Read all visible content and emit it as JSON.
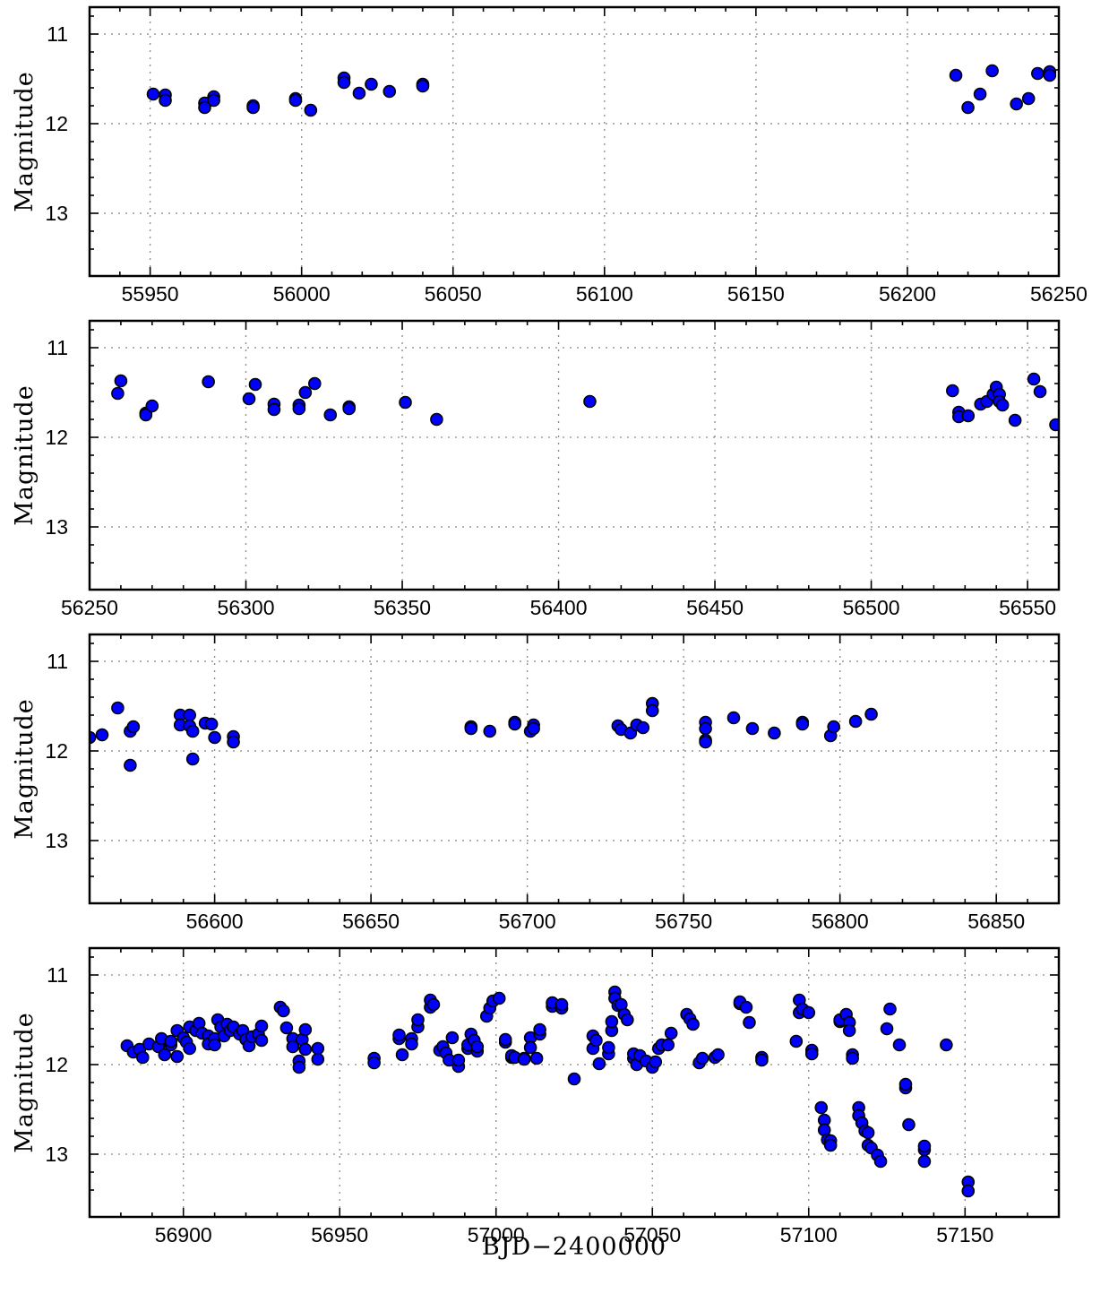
{
  "chart_data": [
    {
      "type": "scatter",
      "xlim": [
        55930,
        56250
      ],
      "ylim": [
        13.7,
        10.7
      ],
      "xticks": [
        55950,
        56000,
        56050,
        56100,
        56150,
        56200,
        56250
      ],
      "yticks": [
        11,
        12,
        13
      ],
      "ylabel": "Magnitude",
      "grid": true,
      "marker_color": "#0000ff",
      "points": [
        [
          55951,
          11.67
        ],
        [
          55955,
          11.68
        ],
        [
          55955,
          11.74
        ],
        [
          55968,
          11.77
        ],
        [
          55968,
          11.82
        ],
        [
          55971,
          11.7
        ],
        [
          55971,
          11.74
        ],
        [
          55984,
          11.8
        ],
        [
          55984,
          11.82
        ],
        [
          55998,
          11.72
        ],
        [
          55998,
          11.74
        ],
        [
          56003,
          11.85
        ],
        [
          56014,
          11.49
        ],
        [
          56014,
          11.54
        ],
        [
          56019,
          11.66
        ],
        [
          56023,
          11.56
        ],
        [
          56029,
          11.64
        ],
        [
          56040,
          11.56
        ],
        [
          56040,
          11.58
        ],
        [
          56216,
          11.46
        ],
        [
          56220,
          11.82
        ],
        [
          56224,
          11.67
        ],
        [
          56228,
          11.41
        ],
        [
          56236,
          11.78
        ],
        [
          56240,
          11.72
        ],
        [
          56243,
          11.44
        ],
        [
          56247,
          11.42
        ],
        [
          56247,
          11.46
        ]
      ]
    },
    {
      "type": "scatter",
      "xlim": [
        56250,
        56560
      ],
      "ylim": [
        13.7,
        10.7
      ],
      "xticks": [
        56250,
        56300,
        56350,
        56400,
        56450,
        56500,
        56550
      ],
      "yticks": [
        11,
        12,
        13
      ],
      "ylabel": "Magnitude",
      "grid": true,
      "marker_color": "#0000ff",
      "points": [
        [
          56259,
          11.51
        ],
        [
          56260,
          11.37
        ],
        [
          56268,
          11.73
        ],
        [
          56268,
          11.75
        ],
        [
          56270,
          11.65
        ],
        [
          56288,
          11.38
        ],
        [
          56301,
          11.57
        ],
        [
          56303,
          11.41
        ],
        [
          56309,
          11.63
        ],
        [
          56309,
          11.69
        ],
        [
          56317,
          11.64
        ],
        [
          56317,
          11.68
        ],
        [
          56319,
          11.5
        ],
        [
          56322,
          11.4
        ],
        [
          56327,
          11.75
        ],
        [
          56333,
          11.66
        ],
        [
          56333,
          11.68
        ],
        [
          56351,
          11.61
        ],
        [
          56361,
          11.8
        ],
        [
          56410,
          11.6
        ],
        [
          56526,
          11.48
        ],
        [
          56528,
          11.72
        ],
        [
          56528,
          11.77
        ],
        [
          56531,
          11.76
        ],
        [
          56535,
          11.63
        ],
        [
          56537,
          11.6
        ],
        [
          56539,
          11.52
        ],
        [
          56540,
          11.44
        ],
        [
          56541,
          11.52
        ],
        [
          56541,
          11.6
        ],
        [
          56542,
          11.64
        ],
        [
          56546,
          11.81
        ],
        [
          56552,
          11.35
        ],
        [
          56554,
          11.49
        ],
        [
          56559,
          11.86
        ]
      ]
    },
    {
      "type": "scatter",
      "xlim": [
        56560,
        56870
      ],
      "ylim": [
        13.7,
        10.7
      ],
      "xticks": [
        56600,
        56650,
        56700,
        56750,
        56800,
        56850
      ],
      "yticks": [
        11,
        12,
        13
      ],
      "ylabel": "Magnitude",
      "grid": true,
      "marker_color": "#0000ff",
      "points": [
        [
          56560,
          11.85
        ],
        [
          56564,
          11.82
        ],
        [
          56569,
          11.52
        ],
        [
          56573,
          11.78
        ],
        [
          56573,
          12.16
        ],
        [
          56574,
          11.73
        ],
        [
          56589,
          11.6
        ],
        [
          56589,
          11.71
        ],
        [
          56592,
          11.6
        ],
        [
          56592,
          11.72
        ],
        [
          56593,
          11.78
        ],
        [
          56593,
          12.09
        ],
        [
          56597,
          11.69
        ],
        [
          56599,
          11.7
        ],
        [
          56600,
          11.85
        ],
        [
          56606,
          11.84
        ],
        [
          56606,
          11.9
        ],
        [
          56682,
          11.73
        ],
        [
          56682,
          11.75
        ],
        [
          56688,
          11.78
        ],
        [
          56696,
          11.68
        ],
        [
          56696,
          11.7
        ],
        [
          56701,
          11.78
        ],
        [
          56702,
          11.71
        ],
        [
          56702,
          11.75
        ],
        [
          56729,
          11.72
        ],
        [
          56730,
          11.76
        ],
        [
          56733,
          11.8
        ],
        [
          56735,
          11.71
        ],
        [
          56737,
          11.74
        ],
        [
          56740,
          11.47
        ],
        [
          56740,
          11.55
        ],
        [
          56757,
          11.68
        ],
        [
          56757,
          11.75
        ],
        [
          56757,
          11.88
        ],
        [
          56757,
          11.9
        ],
        [
          56766,
          11.63
        ],
        [
          56772,
          11.75
        ],
        [
          56779,
          11.8
        ],
        [
          56788,
          11.68
        ],
        [
          56788,
          11.7
        ],
        [
          56797,
          11.83
        ],
        [
          56798,
          11.73
        ],
        [
          56805,
          11.67
        ],
        [
          56810,
          11.59
        ]
      ]
    },
    {
      "type": "scatter",
      "xlim": [
        56870,
        57180
      ],
      "ylim": [
        13.7,
        10.7
      ],
      "xticks": [
        56900,
        56950,
        57000,
        57050,
        57100,
        57150
      ],
      "yticks": [
        11,
        12,
        13
      ],
      "ylabel": "Magnitude",
      "grid": true,
      "marker_color": "#0000ff",
      "points": [
        [
          56882,
          11.79
        ],
        [
          56884,
          11.86
        ],
        [
          56886,
          11.83
        ],
        [
          56887,
          11.92
        ],
        [
          56889,
          11.77
        ],
        [
          56892,
          11.8
        ],
        [
          56893,
          11.71
        ],
        [
          56894,
          11.89
        ],
        [
          56896,
          11.78
        ],
        [
          56896,
          11.74
        ],
        [
          56898,
          11.91
        ],
        [
          56898,
          11.62
        ],
        [
          56900,
          11.7
        ],
        [
          56901,
          11.75
        ],
        [
          56902,
          11.58
        ],
        [
          56902,
          11.82
        ],
        [
          56904,
          11.62
        ],
        [
          56905,
          11.54
        ],
        [
          56906,
          11.65
        ],
        [
          56908,
          11.68
        ],
        [
          56908,
          11.77
        ],
        [
          56910,
          11.71
        ],
        [
          56910,
          11.78
        ],
        [
          56911,
          11.5
        ],
        [
          56912,
          11.58
        ],
        [
          56913,
          11.68
        ],
        [
          56914,
          11.55
        ],
        [
          56915,
          11.62
        ],
        [
          56916,
          11.58
        ],
        [
          56918,
          11.66
        ],
        [
          56919,
          11.62
        ],
        [
          56920,
          11.72
        ],
        [
          56921,
          11.79
        ],
        [
          56922,
          11.69
        ],
        [
          56924,
          11.66
        ],
        [
          56925,
          11.73
        ],
        [
          56925,
          11.57
        ],
        [
          56931,
          11.36
        ],
        [
          56932,
          11.4
        ],
        [
          56933,
          11.59
        ],
        [
          56935,
          11.71
        ],
        [
          56935,
          11.8
        ],
        [
          56937,
          11.96
        ],
        [
          56937,
          12.03
        ],
        [
          56938,
          11.72
        ],
        [
          56939,
          11.61
        ],
        [
          56939,
          11.83
        ],
        [
          56943,
          11.82
        ],
        [
          56943,
          11.94
        ],
        [
          56961,
          11.93
        ],
        [
          56961,
          11.98
        ],
        [
          56969,
          11.71
        ],
        [
          56969,
          11.67
        ],
        [
          56970,
          11.89
        ],
        [
          56973,
          11.71
        ],
        [
          56973,
          11.77
        ],
        [
          56975,
          11.58
        ],
        [
          56975,
          11.5
        ],
        [
          56979,
          11.36
        ],
        [
          56979,
          11.28
        ],
        [
          56980,
          11.33
        ],
        [
          56982,
          11.84
        ],
        [
          56983,
          11.8
        ],
        [
          56984,
          11.87
        ],
        [
          56985,
          11.95
        ],
        [
          56986,
          11.7
        ],
        [
          56988,
          12.02
        ],
        [
          56988,
          11.95
        ],
        [
          56991,
          11.82
        ],
        [
          56991,
          11.78
        ],
        [
          56992,
          11.66
        ],
        [
          56993,
          11.73
        ],
        [
          56994,
          11.85
        ],
        [
          56994,
          11.8
        ],
        [
          56997,
          11.46
        ],
        [
          56998,
          11.37
        ],
        [
          56999,
          11.29
        ],
        [
          57001,
          11.26
        ],
        [
          57003,
          11.75
        ],
        [
          57003,
          11.72
        ],
        [
          57005,
          11.92
        ],
        [
          57005,
          11.9
        ],
        [
          57006,
          11.92
        ],
        [
          57009,
          11.93
        ],
        [
          57009,
          11.94
        ],
        [
          57011,
          11.7
        ],
        [
          57011,
          11.81
        ],
        [
          57013,
          11.93
        ],
        [
          57014,
          11.66
        ],
        [
          57014,
          11.61
        ],
        [
          57018,
          11.35
        ],
        [
          57018,
          11.31
        ],
        [
          57021,
          11.37
        ],
        [
          57021,
          11.33
        ],
        [
          57025,
          12.16
        ],
        [
          57031,
          11.82
        ],
        [
          57031,
          11.68
        ],
        [
          57032,
          11.73
        ],
        [
          57033,
          11.99
        ],
        [
          57036,
          11.88
        ],
        [
          57036,
          11.81
        ],
        [
          57037,
          11.62
        ],
        [
          57037,
          11.52
        ],
        [
          57038,
          11.19
        ],
        [
          57038,
          11.26
        ],
        [
          57039,
          11.34
        ],
        [
          57040,
          11.33
        ],
        [
          57041,
          11.44
        ],
        [
          57042,
          11.5
        ],
        [
          57044,
          11.93
        ],
        [
          57044,
          11.88
        ],
        [
          57045,
          12.0
        ],
        [
          57046,
          11.9
        ],
        [
          57048,
          11.96
        ],
        [
          57050,
          12.03
        ],
        [
          57051,
          11.97
        ],
        [
          57052,
          11.82
        ],
        [
          57053,
          11.78
        ],
        [
          57055,
          11.78
        ],
        [
          57056,
          11.65
        ],
        [
          57061,
          11.44
        ],
        [
          57062,
          11.49
        ],
        [
          57063,
          11.55
        ],
        [
          57065,
          11.98
        ],
        [
          57066,
          11.93
        ],
        [
          57070,
          11.92
        ],
        [
          57071,
          11.89
        ],
        [
          57078,
          11.32
        ],
        [
          57078,
          11.3
        ],
        [
          57080,
          11.36
        ],
        [
          57081,
          11.53
        ],
        [
          57085,
          11.92
        ],
        [
          57085,
          11.95
        ],
        [
          57096,
          11.74
        ],
        [
          57097,
          11.42
        ],
        [
          57097,
          11.28
        ],
        [
          57098,
          11.38
        ],
        [
          57100,
          11.42
        ],
        [
          57101,
          11.84
        ],
        [
          57101,
          11.88
        ],
        [
          57104,
          12.48
        ],
        [
          57105,
          12.62
        ],
        [
          57105,
          12.73
        ],
        [
          57106,
          12.84
        ],
        [
          57107,
          12.85
        ],
        [
          57107,
          12.9
        ],
        [
          57110,
          11.52
        ],
        [
          57110,
          11.5
        ],
        [
          57112,
          11.44
        ],
        [
          57113,
          11.53
        ],
        [
          57113,
          11.62
        ],
        [
          57114,
          11.89
        ],
        [
          57114,
          11.93
        ],
        [
          57116,
          12.48
        ],
        [
          57116,
          12.57
        ],
        [
          57117,
          12.65
        ],
        [
          57118,
          12.74
        ],
        [
          57119,
          12.76
        ],
        [
          57119,
          12.9
        ],
        [
          57120,
          12.93
        ],
        [
          57122,
          13.01
        ],
        [
          57123,
          13.08
        ],
        [
          57125,
          11.6
        ],
        [
          57126,
          11.38
        ],
        [
          57129,
          11.78
        ],
        [
          57131,
          12.26
        ],
        [
          57131,
          12.22
        ],
        [
          57132,
          12.67
        ],
        [
          57137,
          12.95
        ],
        [
          57137,
          12.91
        ],
        [
          57137,
          13.08
        ],
        [
          57144,
          11.78
        ],
        [
          57151,
          13.31
        ],
        [
          57151,
          13.41
        ]
      ]
    }
  ],
  "xlabel": "BJD−2400000"
}
